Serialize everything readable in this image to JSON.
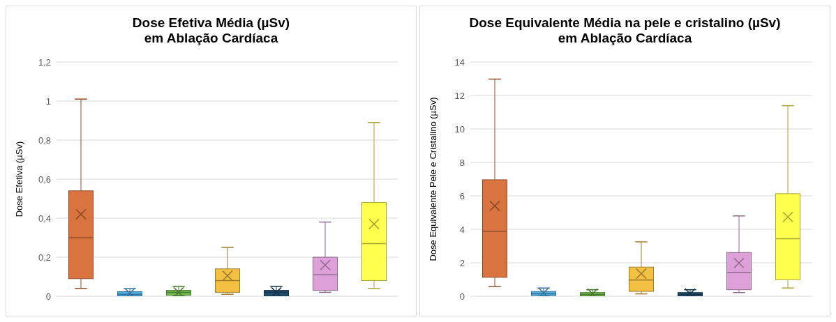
{
  "chart_data": [
    {
      "type": "box",
      "title": "Dose Efetiva Média (µSv)\nem Ablação Cardíaca",
      "ylabel": "Dose Efetiva (µSv)",
      "categories": [
        null,
        null,
        null,
        null,
        null,
        null,
        null
      ],
      "colors": [
        "#d9733f",
        "#4fb0e8",
        "#71b94a",
        "#f3c042",
        "#1f4e6e",
        "#dda0d8",
        "#ffff4d"
      ],
      "boxes": [
        {
          "low": 0.04,
          "q1": 0.09,
          "median": 0.3,
          "q3": 0.54,
          "high": 1.01,
          "mean": 0.42
        },
        {
          "low": 0,
          "q1": 0.002,
          "median": 0.01,
          "q3": 0.023,
          "high": 0.039,
          "mean": 0.015
        },
        {
          "low": 0,
          "q1": 0.005,
          "median": 0.02,
          "q3": 0.03,
          "high": 0.05,
          "mean": 0.02
        },
        {
          "low": 0.01,
          "q1": 0.02,
          "median": 0.08,
          "q3": 0.14,
          "high": 0.25,
          "mean": 0.105
        },
        {
          "low": 0,
          "q1": 0.002,
          "median": 0.02,
          "q3": 0.03,
          "high": 0.05,
          "mean": 0.02
        },
        {
          "low": 0.02,
          "q1": 0.03,
          "median": 0.11,
          "q3": 0.2,
          "high": 0.38,
          "mean": 0.16
        },
        {
          "low": 0.04,
          "q1": 0.08,
          "median": 0.27,
          "q3": 0.48,
          "high": 0.89,
          "mean": 0.37
        }
      ],
      "ylim": [
        0,
        1.2
      ],
      "yticks": [
        0,
        {
          "value": 0.2,
          "label": "0,2"
        },
        {
          "value": 0.4,
          "label": "0,4"
        },
        {
          "value": 0.6,
          "label": "0,6"
        },
        {
          "value": 0.8,
          "label": "0,8"
        },
        1,
        {
          "value": 1.2,
          "label": "1,2"
        }
      ],
      "grid": "y",
      "marker": "cross"
    },
    {
      "type": "box",
      "title": "Dose Equivalente Média na pele e cristalino (µSv)\nem Ablação Cardíaca",
      "ylabel": "Dose Equivalente Pele e Cristalino (µSv)",
      "categories": [
        null,
        null,
        null,
        null,
        null,
        null,
        null
      ],
      "colors": [
        "#d9733f",
        "#4fb0e8",
        "#71b94a",
        "#f3c042",
        "#1f4e6e",
        "#dda0d8",
        "#ffff4d"
      ],
      "boxes": [
        {
          "low": 0.57,
          "q1": 1.13,
          "median": 3.89,
          "q3": 6.96,
          "high": 12.98,
          "mean": 5.4
        },
        {
          "low": 0,
          "q1": 0.04,
          "median": 0.15,
          "q3": 0.28,
          "high": 0.49,
          "mean": 0.2
        },
        {
          "low": 0,
          "q1": 0.01,
          "median": 0.1,
          "q3": 0.22,
          "high": 0.39,
          "mean": 0.15
        },
        {
          "low": 0.14,
          "q1": 0.29,
          "median": 0.97,
          "q3": 1.74,
          "high": 3.25,
          "mean": 1.35
        },
        {
          "low": 0,
          "q1": 0.01,
          "median": 0.1,
          "q3": 0.22,
          "high": 0.39,
          "mean": 0.15
        },
        {
          "low": 0.22,
          "q1": 0.39,
          "median": 1.43,
          "q3": 2.61,
          "high": 4.8,
          "mean": 1.99
        },
        {
          "low": 0.49,
          "q1": 0.99,
          "median": 3.44,
          "q3": 6.13,
          "high": 11.39,
          "mean": 4.74
        }
      ],
      "ylim": [
        0,
        14
      ],
      "yticks": [
        0,
        2,
        4,
        6,
        8,
        10,
        12,
        14
      ],
      "grid": "y",
      "marker": "cross"
    }
  ]
}
